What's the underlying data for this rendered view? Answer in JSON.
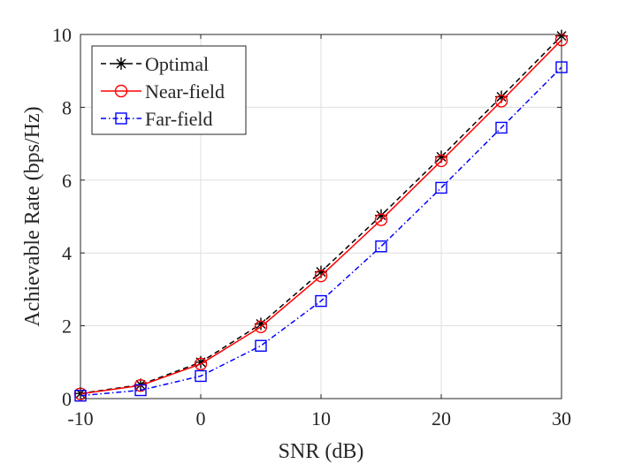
{
  "chart_data": {
    "type": "line",
    "title": "",
    "xlabel": "SNR (dB)",
    "ylabel": "Achievable Rate (bps/Hz)",
    "xlim": [
      -10,
      30
    ],
    "ylim": [
      0,
      10
    ],
    "xticks": [
      -10,
      0,
      10,
      20,
      30
    ],
    "yticks": [
      0,
      2,
      4,
      6,
      8,
      10
    ],
    "grid": true,
    "legend_position": "top-left",
    "x": [
      -10,
      -5,
      0,
      5,
      10,
      15,
      20,
      25,
      30
    ],
    "series": [
      {
        "name": "Optimal",
        "color": "#000000",
        "line_style": "dashed",
        "marker": "asterisk",
        "values": [
          0.14,
          0.38,
          1.0,
          2.05,
          3.48,
          5.03,
          6.64,
          8.29,
          9.96
        ]
      },
      {
        "name": "Near-field",
        "color": "#ff0000",
        "line_style": "solid",
        "marker": "circle",
        "values": [
          0.13,
          0.36,
          0.95,
          1.97,
          3.37,
          4.91,
          6.53,
          8.17,
          9.85
        ]
      },
      {
        "name": "Far-field",
        "color": "#0000ff",
        "line_style": "dash-dot",
        "marker": "square",
        "values": [
          0.08,
          0.23,
          0.62,
          1.45,
          2.68,
          4.18,
          5.79,
          7.44,
          9.1
        ]
      }
    ]
  }
}
